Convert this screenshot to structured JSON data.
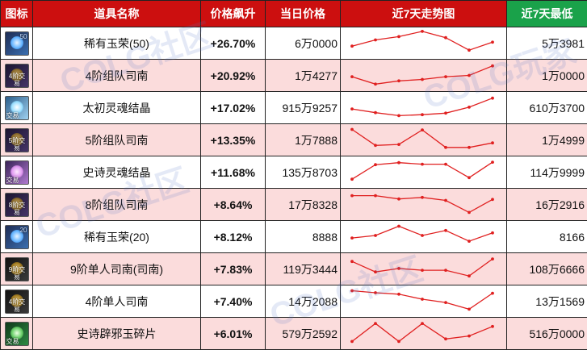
{
  "headers": {
    "icon": "图标",
    "name": "道具名称",
    "change": "价格飙升",
    "today_price": "当日价格",
    "trend": "近7天走势图",
    "lowest": "近7天最低"
  },
  "colors": {
    "header_red": "#cc0f0f",
    "header_green": "#1aa24a",
    "row_pink": "#fbdcdc",
    "change_red": "#e01b1b",
    "trend_line": "#e02020"
  },
  "rows": [
    {
      "icon": "rare-jade-icon",
      "icon_label": "50",
      "icon_trade": "",
      "name": "稀有玉荣(50)",
      "change": "+26.70%",
      "today_price": "6万0000",
      "lowest": "5万3981",
      "trend": [
        0.62,
        0.37,
        0.24,
        0.03,
        0.28,
        0.78,
        0.46
      ]
    },
    {
      "icon": "team-compass-icon",
      "icon_label": "",
      "icon_trade": "4阶交易",
      "name": "4阶组队司南",
      "change": "+20.92%",
      "today_price": "1万4277",
      "lowest": "1万0000",
      "trend": [
        0.55,
        0.85,
        0.72,
        0.66,
        0.55,
        0.5,
        0.12
      ]
    },
    {
      "icon": "soul-crystal-icon",
      "icon_label": "",
      "icon_trade": "交易",
      "name": "太初灵魂结晶",
      "change": "+17.02%",
      "today_price": "915万9257",
      "lowest": "610万3700",
      "trend": [
        0.55,
        0.7,
        0.82,
        0.78,
        0.72,
        0.48,
        0.12
      ]
    },
    {
      "icon": "team-compass-icon",
      "icon_label": "",
      "icon_trade": "5阶交易",
      "name": "5阶组队司南",
      "change": "+13.35%",
      "today_price": "1万7888",
      "lowest": "1万4999",
      "trend": [
        0.08,
        0.72,
        0.68,
        0.1,
        0.8,
        0.8,
        0.62
      ]
    },
    {
      "icon": "epic-soul-crystal-icon",
      "icon_label": "",
      "icon_trade": "交易",
      "name": "史诗灵魂结晶",
      "change": "+11.68%",
      "today_price": "135万8703",
      "lowest": "114万9999",
      "trend": [
        0.78,
        0.2,
        0.12,
        0.18,
        0.18,
        0.72,
        0.1
      ]
    },
    {
      "icon": "team-compass-icon",
      "icon_label": "",
      "icon_trade": "8阶交易",
      "name": "8阶组队司南",
      "change": "+8.64%",
      "today_price": "17万8328",
      "lowest": "16万2916",
      "trend": [
        0.15,
        0.15,
        0.28,
        0.22,
        0.34,
        0.82,
        0.3
      ]
    },
    {
      "icon": "rare-jade-icon",
      "icon_label": "20",
      "icon_trade": "",
      "name": "稀有玉荣(20)",
      "change": "+8.12%",
      "today_price": "8888",
      "lowest": "8166",
      "trend": [
        0.55,
        0.45,
        0.08,
        0.45,
        0.25,
        0.68,
        0.35
      ]
    },
    {
      "icon": "solo-compass-icon",
      "icon_label": "",
      "icon_trade": "9阶交易",
      "name": "9阶单人司南(司南)",
      "change": "+7.83%",
      "today_price": "119万3444",
      "lowest": "108万6666",
      "trend": [
        0.2,
        0.62,
        0.48,
        0.55,
        0.55,
        0.78,
        0.1
      ]
    },
    {
      "icon": "solo-compass-icon",
      "icon_label": "",
      "icon_trade": "4阶交易",
      "name": "4阶单人司南",
      "change": "+7.40%",
      "today_price": "14万2088",
      "lowest": "13万1569",
      "trend": [
        0.08,
        0.16,
        0.22,
        0.42,
        0.55,
        0.82,
        0.18
      ]
    },
    {
      "icon": "evil-jade-icon",
      "icon_label": "",
      "icon_trade": "交易",
      "name": "史诗辟邪玉碎片",
      "change": "+6.01%",
      "today_price": "579万2592",
      "lowest": "516万0000",
      "trend": [
        0.82,
        0.1,
        0.82,
        0.1,
        0.72,
        0.6,
        0.22
      ]
    }
  ]
}
